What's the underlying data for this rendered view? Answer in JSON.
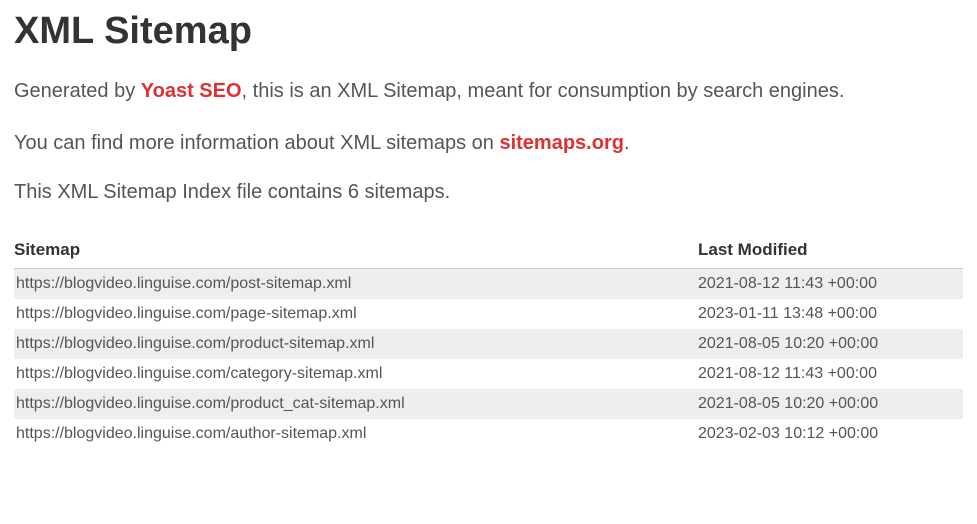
{
  "title": "XML Sitemap",
  "intro": {
    "prefix": "Generated by ",
    "link1_text": "Yoast SEO",
    "middle": ", this is an XML Sitemap, meant for consumption by search engines."
  },
  "info": {
    "prefix": "You can find more information about XML sitemaps on ",
    "link2_text": "sitemaps.org",
    "suffix": "."
  },
  "count_line": "This XML Sitemap Index file contains 6 sitemaps.",
  "table": {
    "header_sitemap": "Sitemap",
    "header_lastmod": "Last Modified",
    "rows": [
      {
        "url": "https://blogvideo.linguise.com/post-sitemap.xml",
        "lastmod": "2021-08-12 11:43 +00:00"
      },
      {
        "url": "https://blogvideo.linguise.com/page-sitemap.xml",
        "lastmod": "2023-01-11 13:48 +00:00"
      },
      {
        "url": "https://blogvideo.linguise.com/product-sitemap.xml",
        "lastmod": "2021-08-05 10:20 +00:00"
      },
      {
        "url": "https://blogvideo.linguise.com/category-sitemap.xml",
        "lastmod": "2021-08-12 11:43 +00:00"
      },
      {
        "url": "https://blogvideo.linguise.com/product_cat-sitemap.xml",
        "lastmod": "2021-08-05 10:20 +00:00"
      },
      {
        "url": "https://blogvideo.linguise.com/author-sitemap.xml",
        "lastmod": "2023-02-03 10:12 +00:00"
      }
    ]
  },
  "colors": {
    "link_red": "#dc3232",
    "text_dark": "#333333",
    "text_body": "#555555",
    "row_odd_bg": "#eeeeee",
    "row_even_bg": "#ffffff",
    "border": "#cccccc"
  }
}
